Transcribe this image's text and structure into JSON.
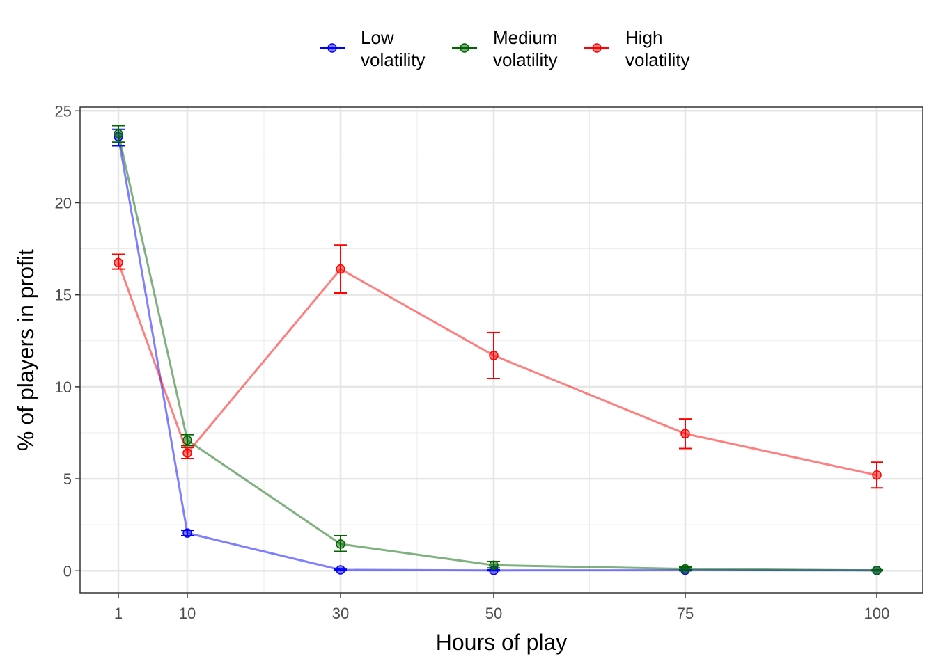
{
  "chart_data": {
    "type": "line",
    "xlabel": "Hours of play",
    "ylabel": "% of players in profit",
    "x": [
      1,
      10,
      30,
      50,
      75,
      100
    ],
    "x_ticks": [
      "1",
      "10",
      "30",
      "50",
      "75",
      "100"
    ],
    "y_ticks": [
      "0",
      "5",
      "10",
      "15",
      "20",
      "25"
    ],
    "xlim": [
      -4,
      106
    ],
    "ylim": [
      -1.2,
      25.2
    ],
    "grid": true,
    "legend_position": "top",
    "series": [
      {
        "name": "Low\nvolatility",
        "color": "#0000ff",
        "values": [
          23.6,
          2.05,
          0.05,
          0.02,
          0.03,
          0.02
        ],
        "err_low": [
          23.1,
          1.9,
          0.02,
          0.0,
          0.0,
          0.0
        ],
        "err_high": [
          24.0,
          2.2,
          0.08,
          0.05,
          0.06,
          0.04
        ]
      },
      {
        "name": "Medium\nvolatility",
        "color": "#006400",
        "values": [
          23.75,
          7.1,
          1.45,
          0.3,
          0.1,
          0.02
        ],
        "err_low": [
          23.3,
          6.8,
          1.05,
          0.15,
          0.0,
          0.0
        ],
        "err_high": [
          24.2,
          7.4,
          1.9,
          0.5,
          0.2,
          0.05
        ]
      },
      {
        "name": "High\nvolatility",
        "color": "#ff0000",
        "values": [
          16.75,
          6.4,
          16.4,
          11.7,
          7.45,
          5.2
        ],
        "err_low": [
          16.4,
          6.1,
          15.1,
          10.45,
          6.65,
          4.5
        ],
        "err_high": [
          17.2,
          6.7,
          17.7,
          12.95,
          8.25,
          5.9
        ]
      }
    ]
  }
}
